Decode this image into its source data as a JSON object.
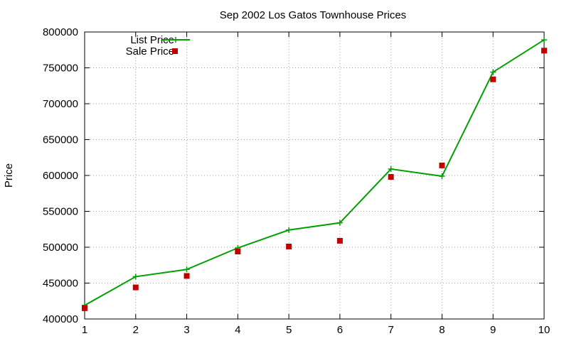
{
  "chart_data": {
    "type": "line",
    "title": "Sep 2002 Los Gatos Townhouse Prices",
    "xlabel": "",
    "ylabel": "Price",
    "x": [
      1,
      2,
      3,
      4,
      5,
      6,
      7,
      8,
      9,
      10
    ],
    "xlim": [
      1,
      10
    ],
    "ylim": [
      400000,
      800000
    ],
    "xticks": [
      "1",
      "2",
      "3",
      "4",
      "5",
      "6",
      "7",
      "8",
      "9",
      "10"
    ],
    "yticks": [
      "400000",
      "450000",
      "500000",
      "550000",
      "600000",
      "650000",
      "700000",
      "750000",
      "800000"
    ],
    "grid": true,
    "legend_position": "top-left",
    "series": [
      {
        "name": "List Price",
        "style": "line-with-plus-markers",
        "color": "#00a000",
        "values": [
          419000,
          459000,
          469000,
          499000,
          524000,
          534000,
          609000,
          599000,
          744000,
          789000
        ]
      },
      {
        "name": "Sale Price",
        "style": "square-points",
        "color": "#c00000",
        "values": [
          415000,
          444000,
          460000,
          494000,
          501000,
          509000,
          598000,
          614000,
          734000,
          774000
        ]
      }
    ]
  }
}
